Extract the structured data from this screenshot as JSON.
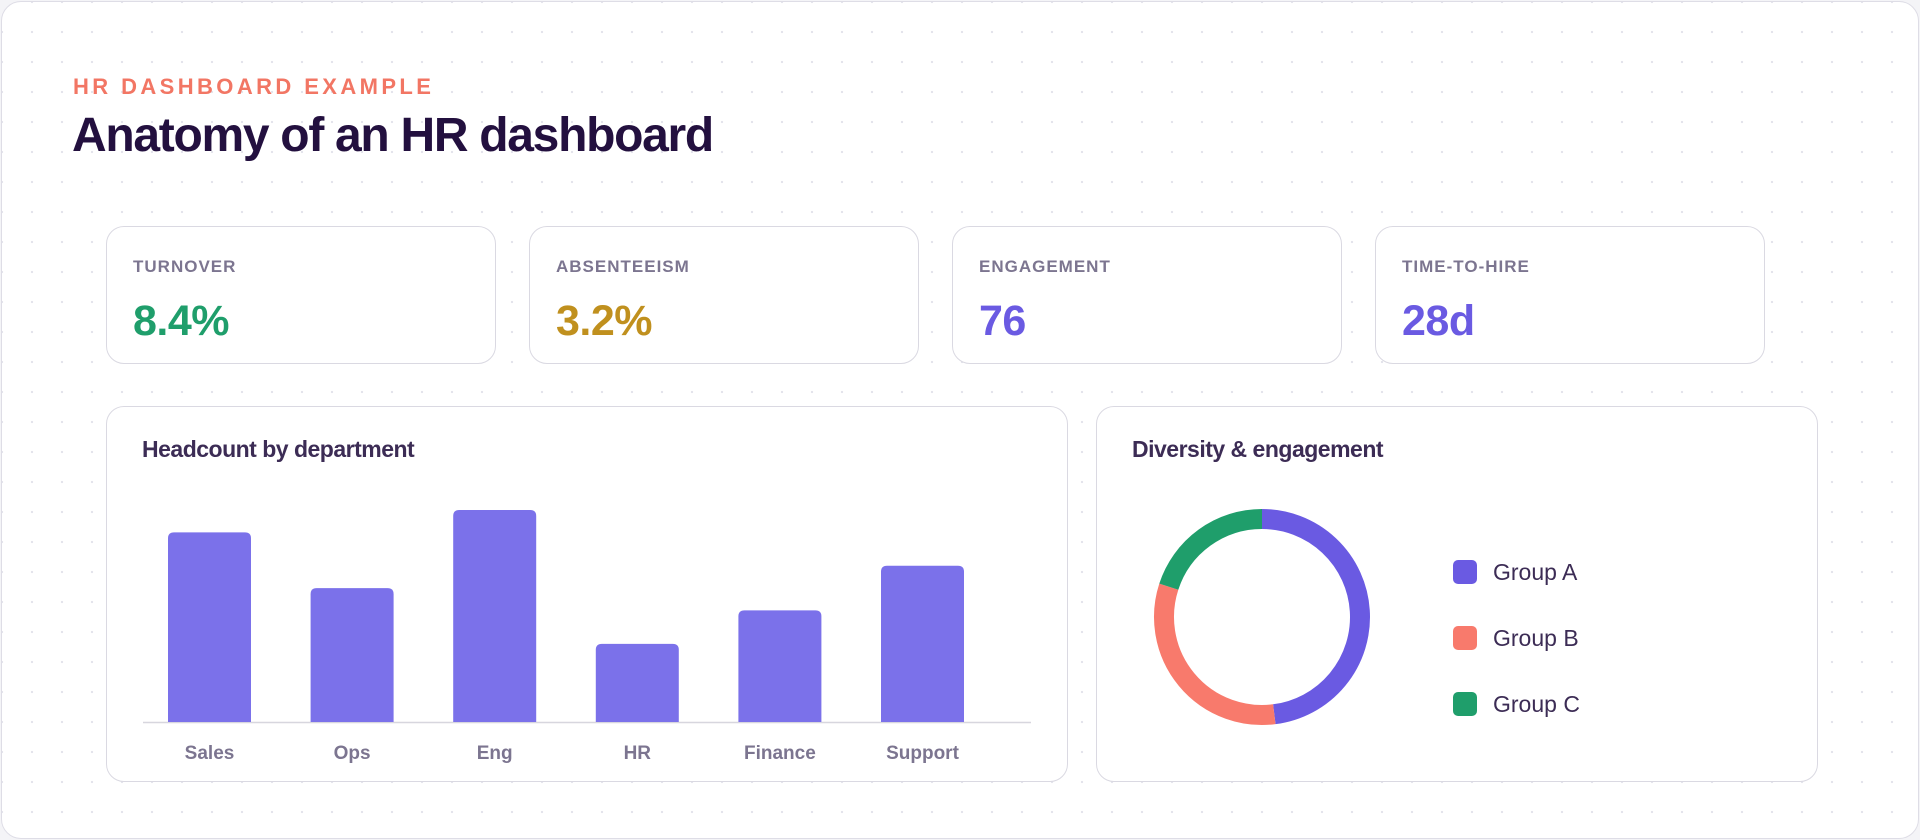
{
  "header": {
    "eyebrow": "HR DASHBOARD EXAMPLE",
    "title": "Anatomy of an HR dashboard"
  },
  "kpis": [
    {
      "label": "TURNOVER",
      "value": "8.4%",
      "color": "#1f9e6b"
    },
    {
      "label": "ABSENTEEISM",
      "value": "3.2%",
      "color": "#c0901e"
    },
    {
      "label": "ENGAGEMENT",
      "value": "76",
      "color": "#6a5ae2"
    },
    {
      "label": "TIME-TO-HIRE",
      "value": "28d",
      "color": "#6a5ae2"
    }
  ],
  "chart_data": [
    {
      "type": "bar",
      "title": "Headcount by department",
      "categories": [
        "Sales",
        "Ops",
        "Eng",
        "HR",
        "Finance",
        "Support"
      ],
      "values": [
        85,
        60,
        95,
        35,
        50,
        70
      ],
      "ylim": [
        0,
        95
      ],
      "grid": false,
      "color": "#7b71ea"
    },
    {
      "type": "pie",
      "title": "Diversity & engagement",
      "labels": [
        "Group A",
        "Group B",
        "Group C"
      ],
      "values": [
        48,
        32,
        20
      ],
      "colors": [
        "#6a5ae2",
        "#f87a6c",
        "#1f9e6b"
      ],
      "legend": "right"
    }
  ]
}
